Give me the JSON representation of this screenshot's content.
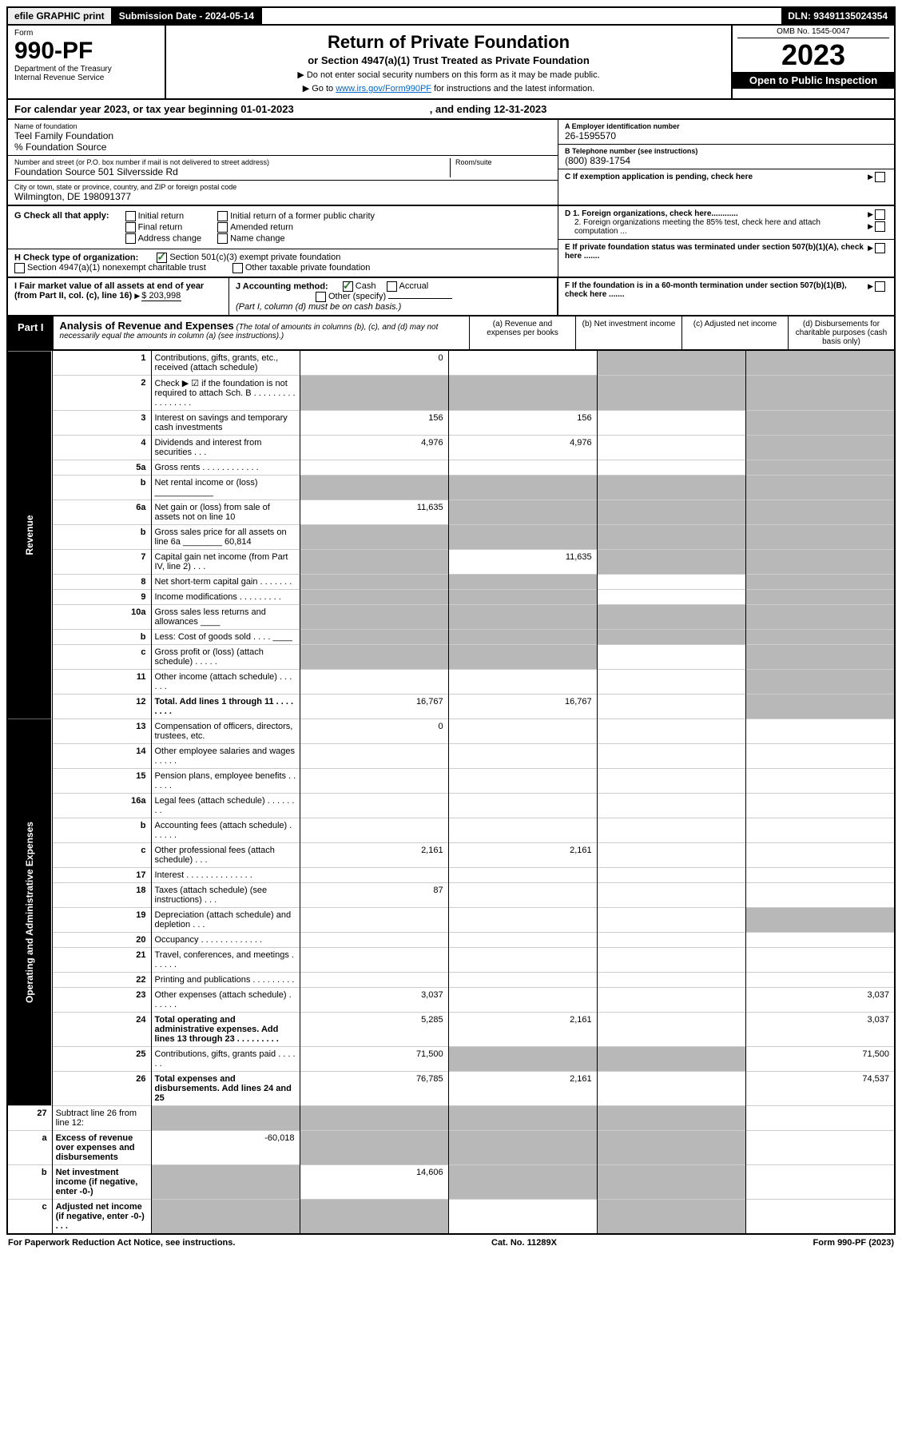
{
  "top_bar": {
    "efile": "efile GRAPHIC print",
    "submission_label": "Submission Date - 2024-05-14",
    "dln": "DLN: 93491135024354"
  },
  "header": {
    "form_word": "Form",
    "form_number": "990-PF",
    "dept": "Department of the Treasury",
    "irs": "Internal Revenue Service",
    "title": "Return of Private Foundation",
    "subtitle": "or Section 4947(a)(1) Trust Treated as Private Foundation",
    "instr1": "▶ Do not enter social security numbers on this form as it may be made public.",
    "instr2_pre": "▶ Go to ",
    "instr2_link": "www.irs.gov/Form990PF",
    "instr2_post": " for instructions and the latest information.",
    "omb": "OMB No. 1545-0047",
    "year": "2023",
    "inspection": "Open to Public Inspection"
  },
  "calendar": {
    "text": "For calendar year 2023, or tax year beginning 01-01-2023",
    "ending": ", and ending 12-31-2023"
  },
  "foundation": {
    "name_lbl": "Name of foundation",
    "name": "Teel Family Foundation",
    "source": "% Foundation Source",
    "addr_lbl": "Number and street (or P.O. box number if mail is not delivered to street address)",
    "addr": "Foundation Source 501 Silversside Rd",
    "room_lbl": "Room/suite",
    "city_lbl": "City or town, state or province, country, and ZIP or foreign postal code",
    "city": "Wilmington, DE  198091377"
  },
  "right_info": {
    "ein_lbl": "A Employer identification number",
    "ein": "26-1595570",
    "phone_lbl": "B Telephone number (see instructions)",
    "phone": "(800) 839-1754",
    "c_lbl": "C If exemption application is pending, check here",
    "d1": "D 1. Foreign organizations, check here............",
    "d2": "2. Foreign organizations meeting the 85% test, check here and attach computation ...",
    "e_lbl": "E If private foundation status was terminated under section 507(b)(1)(A), check here .......",
    "f_lbl": "F  If the foundation is in a 60-month termination under section 507(b)(1)(B), check here ......."
  },
  "g_check": {
    "label": "G Check all that apply:",
    "opts": [
      "Initial return",
      "Final return",
      "Address change",
      "Initial return of a former public charity",
      "Amended return",
      "Name change"
    ]
  },
  "h_check": {
    "label": "H Check type of organization:",
    "opt1": "Section 501(c)(3) exempt private foundation",
    "opt2": "Section 4947(a)(1) nonexempt charitable trust",
    "opt3": "Other taxable private foundation"
  },
  "i_j": {
    "i_label": "I Fair market value of all assets at end of year (from Part II, col. (c), line 16)",
    "i_val": "$  203,998",
    "j_label": "J Accounting method:",
    "j_cash": "Cash",
    "j_accrual": "Accrual",
    "j_other": "Other (specify)",
    "j_note": "(Part I, column (d) must be on cash basis.)"
  },
  "part1": {
    "label": "Part I",
    "title": "Analysis of Revenue and Expenses",
    "title_note": "(The total of amounts in columns (b), (c), and (d) may not necessarily equal the amounts in column (a) (see instructions).)",
    "cols": {
      "a": "(a)   Revenue and expenses per books",
      "b": "(b)   Net investment income",
      "c": "(c)   Adjusted net income",
      "d": "(d)   Disbursements for charitable purposes (cash basis only)"
    }
  },
  "side_labels": {
    "revenue": "Revenue",
    "expenses": "Operating and Administrative Expenses"
  },
  "rows": [
    {
      "n": "1",
      "desc": "Contributions, gifts, grants, etc., received (attach schedule)",
      "a": "0",
      "b": "",
      "c": "g",
      "d": "g"
    },
    {
      "n": "2",
      "desc": "Check ▶ ☑ if the foundation is not required to attach Sch. B   . . . . . . . . . . . . . . . . .",
      "a": "g",
      "b": "g",
      "c": "g",
      "d": "g"
    },
    {
      "n": "3",
      "desc": "Interest on savings and temporary cash investments",
      "a": "156",
      "b": "156",
      "c": "",
      "d": "g"
    },
    {
      "n": "4",
      "desc": "Dividends and interest from securities   .  .  .",
      "a": "4,976",
      "b": "4,976",
      "c": "",
      "d": "g"
    },
    {
      "n": "5a",
      "desc": "Gross rents   .  .  .  .  .  .  .  .  .  .  .  .",
      "a": "",
      "b": "",
      "c": "",
      "d": "g"
    },
    {
      "n": "b",
      "desc": "Net rental income or (loss)  ____________",
      "a": "g",
      "b": "g",
      "c": "g",
      "d": "g"
    },
    {
      "n": "6a",
      "desc": "Net gain or (loss) from sale of assets not on line 10",
      "a": "11,635",
      "b": "g",
      "c": "g",
      "d": "g"
    },
    {
      "n": "b",
      "desc": "Gross sales price for all assets on line 6a ________ 60,814",
      "a": "g",
      "b": "g",
      "c": "g",
      "d": "g"
    },
    {
      "n": "7",
      "desc": "Capital gain net income (from Part IV, line 2)   .  .  .",
      "a": "g",
      "b": "11,635",
      "c": "g",
      "d": "g"
    },
    {
      "n": "8",
      "desc": "Net short-term capital gain  .  .  .  .  .  .  .",
      "a": "g",
      "b": "g",
      "c": "",
      "d": "g"
    },
    {
      "n": "9",
      "desc": "Income modifications .  .  .  .  .  .  .  .  .",
      "a": "g",
      "b": "g",
      "c": "",
      "d": "g"
    },
    {
      "n": "10a",
      "desc": "Gross sales less returns and allowances  ____",
      "a": "g",
      "b": "g",
      "c": "g",
      "d": "g"
    },
    {
      "n": "b",
      "desc": "Less: Cost of goods sold   .  .  .  .  ____",
      "a": "g",
      "b": "g",
      "c": "g",
      "d": "g"
    },
    {
      "n": "c",
      "desc": "Gross profit or (loss) (attach schedule)   .  .  .  .  .",
      "a": "g",
      "b": "g",
      "c": "",
      "d": "g"
    },
    {
      "n": "11",
      "desc": "Other income (attach schedule)   .  .  .  .  .  .",
      "a": "",
      "b": "",
      "c": "",
      "d": "g"
    },
    {
      "n": "12",
      "desc": "Total. Add lines 1 through 11  .  .  .  .  .  .  .  .",
      "a": "16,767",
      "b": "16,767",
      "c": "",
      "d": "g",
      "bold": true
    }
  ],
  "exp_rows": [
    {
      "n": "13",
      "desc": "Compensation of officers, directors, trustees, etc.",
      "a": "0",
      "b": "",
      "c": "",
      "d": ""
    },
    {
      "n": "14",
      "desc": "Other employee salaries and wages   .  .  .  .  .",
      "a": "",
      "b": "",
      "c": "",
      "d": ""
    },
    {
      "n": "15",
      "desc": "Pension plans, employee benefits  .  .  .  .  .  .",
      "a": "",
      "b": "",
      "c": "",
      "d": ""
    },
    {
      "n": "16a",
      "desc": "Legal fees (attach schedule) .  .  .  .  .  .  .  .",
      "a": "",
      "b": "",
      "c": "",
      "d": ""
    },
    {
      "n": "b",
      "desc": "Accounting fees (attach schedule) .  .  .  .  .  .",
      "a": "",
      "b": "",
      "c": "",
      "d": ""
    },
    {
      "n": "c",
      "desc": "Other professional fees (attach schedule)   .  .  .",
      "a": "2,161",
      "b": "2,161",
      "c": "",
      "d": ""
    },
    {
      "n": "17",
      "desc": "Interest .  .  .  .  .  .  .  .  .  .  .  .  .  .",
      "a": "",
      "b": "",
      "c": "",
      "d": ""
    },
    {
      "n": "18",
      "desc": "Taxes (attach schedule) (see instructions)   .  .  .",
      "a": "87",
      "b": "",
      "c": "",
      "d": ""
    },
    {
      "n": "19",
      "desc": "Depreciation (attach schedule) and depletion   .  .  .",
      "a": "",
      "b": "",
      "c": "",
      "d": "g"
    },
    {
      "n": "20",
      "desc": "Occupancy .  .  .  .  .  .  .  .  .  .  .  .  .",
      "a": "",
      "b": "",
      "c": "",
      "d": ""
    },
    {
      "n": "21",
      "desc": "Travel, conferences, and meetings .  .  .  .  .  .",
      "a": "",
      "b": "",
      "c": "",
      "d": ""
    },
    {
      "n": "22",
      "desc": "Printing and publications .  .  .  .  .  .  .  .  .",
      "a": "",
      "b": "",
      "c": "",
      "d": ""
    },
    {
      "n": "23",
      "desc": "Other expenses (attach schedule) .  .  .  .  .  .",
      "a": "3,037",
      "b": "",
      "c": "",
      "d": "3,037"
    },
    {
      "n": "24",
      "desc": "Total operating and administrative expenses. Add lines 13 through 23  .  .  .  .  .  .  .  .  .",
      "a": "5,285",
      "b": "2,161",
      "c": "",
      "d": "3,037",
      "bold": true
    },
    {
      "n": "25",
      "desc": "Contributions, gifts, grants paid   .  .  .  .  .  .",
      "a": "71,500",
      "b": "g",
      "c": "g",
      "d": "71,500"
    },
    {
      "n": "26",
      "desc": "Total expenses and disbursements. Add lines 24 and 25",
      "a": "76,785",
      "b": "2,161",
      "c": "",
      "d": "74,537",
      "bold": true
    }
  ],
  "final_rows": [
    {
      "n": "27",
      "desc": "Subtract line 26 from line 12:",
      "a": "g",
      "b": "g",
      "c": "g",
      "d": "g"
    },
    {
      "n": "a",
      "desc": "Excess of revenue over expenses and disbursements",
      "a": "-60,018",
      "b": "g",
      "c": "g",
      "d": "g",
      "bold": true
    },
    {
      "n": "b",
      "desc": "Net investment income (if negative, enter -0-)",
      "a": "g",
      "b": "14,606",
      "c": "g",
      "d": "g",
      "bold": true
    },
    {
      "n": "c",
      "desc": "Adjusted net income (if negative, enter -0-)   .  .  .",
      "a": "g",
      "b": "g",
      "c": "",
      "d": "g",
      "bold": true
    }
  ],
  "footer": {
    "left": "For Paperwork Reduction Act Notice, see instructions.",
    "mid": "Cat. No. 11289X",
    "right": "Form 990-PF (2023)"
  }
}
